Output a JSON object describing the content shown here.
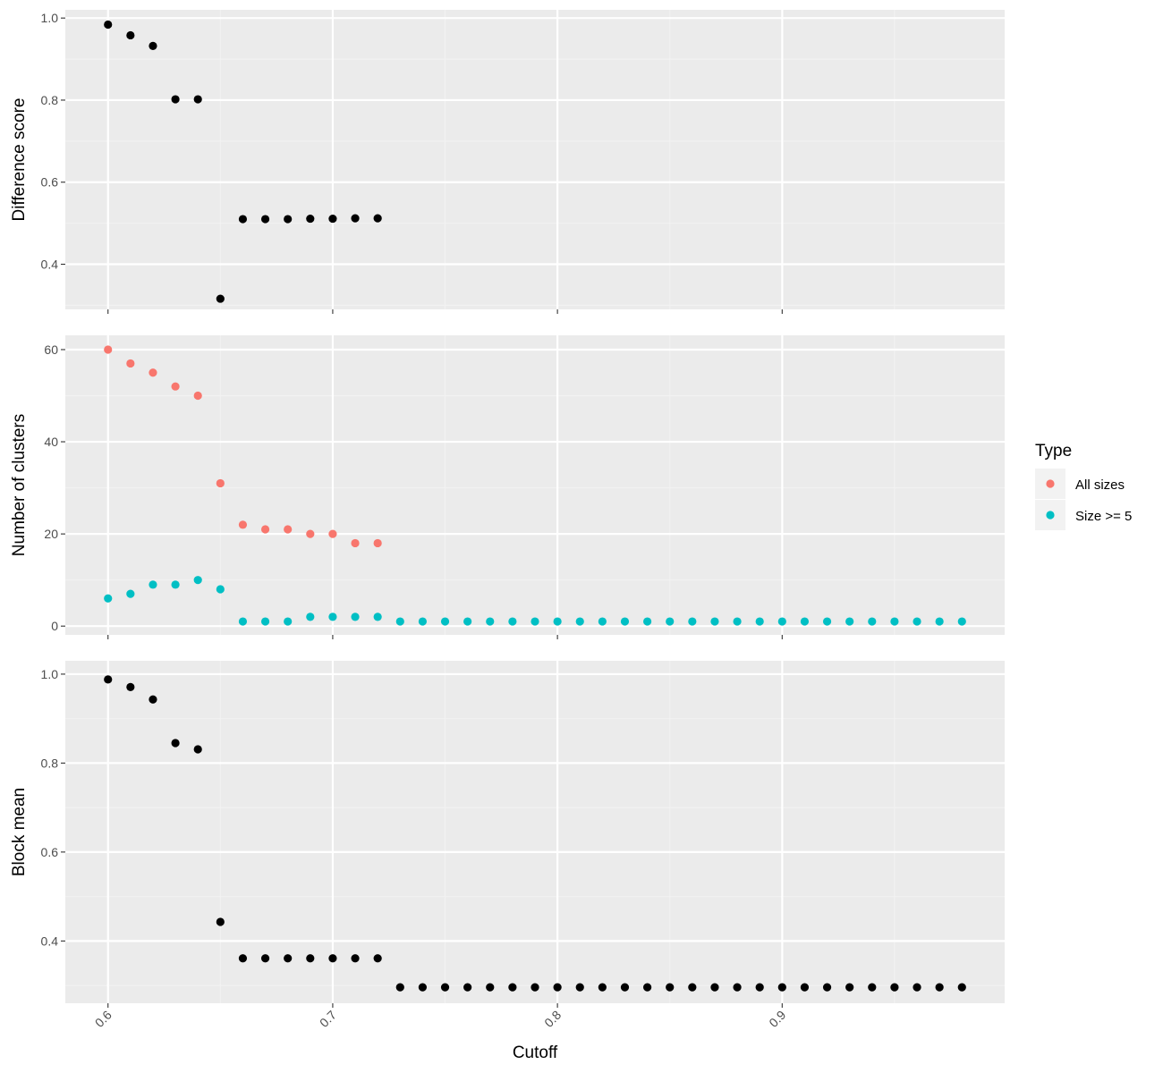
{
  "chart_data": {
    "type": "scatter",
    "xlabel": "Cutoff",
    "xlim": [
      0.581,
      0.999
    ],
    "xticks": [
      0.6,
      0.7,
      0.8,
      0.9
    ],
    "xtick_labels": [
      "0.6",
      "0.7",
      "0.8",
      "0.9"
    ],
    "grid": true,
    "legend": {
      "title": "Type",
      "position": "right",
      "entries": [
        {
          "label": "All sizes",
          "color": "#F8766D"
        },
        {
          "label": "Size >= 5",
          "color": "#00BFC4"
        }
      ]
    },
    "panels": [
      {
        "ylabel": "Difference score",
        "ylim": [
          0.29,
          1.02
        ],
        "yticks": [
          0.4,
          0.6,
          0.8,
          1.0
        ],
        "ytick_labels": [
          "0.4",
          "0.6",
          "0.8",
          "1.0"
        ],
        "series": [
          {
            "color": "#000000",
            "x": [
              0.6,
              0.61,
              0.62,
              0.63,
              0.64,
              0.65,
              0.66,
              0.67,
              0.68,
              0.69,
              0.7,
              0.71,
              0.72
            ],
            "y": [
              0.984,
              0.958,
              0.932,
              0.802,
              0.802,
              0.316,
              0.51,
              0.51,
              0.51,
              0.511,
              0.511,
              0.512,
              0.512
            ]
          }
        ]
      },
      {
        "ylabel": "Number of clusters",
        "ylim": [
          -1.9,
          63.1
        ],
        "yticks": [
          0,
          20,
          40,
          60
        ],
        "ytick_labels": [
          "0",
          "20",
          "40",
          "60"
        ],
        "series": [
          {
            "name": "All sizes",
            "color": "#F8766D",
            "x": [
              0.6,
              0.61,
              0.62,
              0.63,
              0.64,
              0.65,
              0.66,
              0.67,
              0.68,
              0.69,
              0.7,
              0.71,
              0.72
            ],
            "y": [
              60,
              57,
              55,
              52,
              50,
              31,
              22,
              21,
              21,
              20,
              20,
              18,
              18
            ]
          },
          {
            "name": "Size >= 5",
            "color": "#00BFC4",
            "x": [
              0.6,
              0.61,
              0.62,
              0.63,
              0.64,
              0.65,
              0.66,
              0.67,
              0.68,
              0.69,
              0.7,
              0.71,
              0.72,
              0.73,
              0.74,
              0.75,
              0.76,
              0.77,
              0.78,
              0.79,
              0.8,
              0.81,
              0.82,
              0.83,
              0.84,
              0.85,
              0.86,
              0.87,
              0.88,
              0.89,
              0.9,
              0.91,
              0.92,
              0.93,
              0.94,
              0.95,
              0.96,
              0.97,
              0.98
            ],
            "y": [
              6,
              7,
              9,
              9,
              10,
              8,
              1,
              1,
              1,
              2,
              2,
              2,
              2,
              1,
              1,
              1,
              1,
              1,
              1,
              1,
              1,
              1,
              1,
              1,
              1,
              1,
              1,
              1,
              1,
              1,
              1,
              1,
              1,
              1,
              1,
              1,
              1,
              1,
              1
            ]
          }
        ]
      },
      {
        "ylabel": "Block mean",
        "ylim": [
          0.26,
          1.03
        ],
        "yticks": [
          0.4,
          0.6,
          0.8,
          1.0
        ],
        "ytick_labels": [
          "0.4",
          "0.6",
          "0.8",
          "1.0"
        ],
        "series": [
          {
            "color": "#000000",
            "x": [
              0.6,
              0.61,
              0.62,
              0.63,
              0.64,
              0.65,
              0.66,
              0.67,
              0.68,
              0.69,
              0.7,
              0.71,
              0.72,
              0.73,
              0.74,
              0.75,
              0.76,
              0.77,
              0.78,
              0.79,
              0.8,
              0.81,
              0.82,
              0.83,
              0.84,
              0.85,
              0.86,
              0.87,
              0.88,
              0.89,
              0.9,
              0.91,
              0.92,
              0.93,
              0.94,
              0.95,
              0.96,
              0.97,
              0.98
            ],
            "y": [
              0.988,
              0.971,
              0.943,
              0.845,
              0.831,
              0.443,
              0.361,
              0.361,
              0.361,
              0.361,
              0.361,
              0.361,
              0.361,
              0.296,
              0.296,
              0.296,
              0.296,
              0.296,
              0.296,
              0.296,
              0.296,
              0.296,
              0.296,
              0.296,
              0.296,
              0.296,
              0.296,
              0.296,
              0.296,
              0.296,
              0.296,
              0.296,
              0.296,
              0.296,
              0.296,
              0.296,
              0.296,
              0.296,
              0.296
            ]
          }
        ]
      }
    ]
  }
}
